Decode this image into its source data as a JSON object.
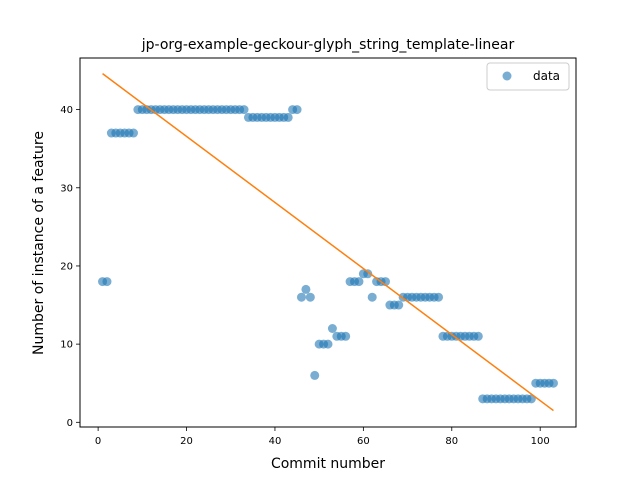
{
  "chart_data": {
    "type": "scatter",
    "title": "jp-org-example-geckour-glyph_string_template-linear",
    "xlabel": "Commit number",
    "ylabel": "Number of instance of a feature",
    "xlim": [
      -4.1,
      108.1
    ],
    "ylim": [
      -0.6,
      46.6
    ],
    "xticks": [
      0,
      20,
      40,
      60,
      80,
      100
    ],
    "yticks": [
      0,
      10,
      20,
      30,
      40
    ],
    "grid": false,
    "legend": {
      "placement": "top-right",
      "entries": [
        "data"
      ]
    },
    "colors": {
      "data": "#1f77b4",
      "fit": "#ff7f0e"
    },
    "series": [
      {
        "name": "data",
        "kind": "scatter",
        "x": [
          1,
          2,
          3,
          4,
          5,
          6,
          7,
          8,
          9,
          10,
          11,
          12,
          13,
          14,
          15,
          16,
          17,
          18,
          19,
          20,
          21,
          22,
          23,
          24,
          25,
          26,
          27,
          28,
          29,
          30,
          31,
          32,
          33,
          34,
          35,
          36,
          37,
          38,
          39,
          40,
          41,
          42,
          43,
          44,
          45,
          46,
          47,
          48,
          49,
          50,
          51,
          52,
          53,
          54,
          55,
          56,
          57,
          58,
          59,
          60,
          61,
          62,
          63,
          64,
          65,
          66,
          67,
          68,
          69,
          70,
          71,
          72,
          73,
          74,
          75,
          76,
          77,
          78,
          79,
          80,
          81,
          82,
          83,
          84,
          85,
          86,
          87,
          88,
          89,
          90,
          91,
          92,
          93,
          94,
          95,
          96,
          97,
          98,
          99,
          100,
          101,
          102,
          103
        ],
        "y": [
          18,
          18,
          37,
          37,
          37,
          37,
          37,
          37,
          40,
          40,
          40,
          40,
          40,
          40,
          40,
          40,
          40,
          40,
          40,
          40,
          40,
          40,
          40,
          40,
          40,
          40,
          40,
          40,
          40,
          40,
          40,
          40,
          40,
          39,
          39,
          39,
          39,
          39,
          39,
          39,
          39,
          39,
          39,
          40,
          40,
          16,
          17,
          16,
          6,
          10,
          10,
          10,
          12,
          11,
          11,
          11,
          18,
          18,
          18,
          19,
          19,
          16,
          18,
          18,
          18,
          15,
          15,
          15,
          16,
          16,
          16,
          16,
          16,
          16,
          16,
          16,
          16,
          11,
          11,
          11,
          11,
          11,
          11,
          11,
          11,
          11,
          3,
          3,
          3,
          3,
          3,
          3,
          3,
          3,
          3,
          3,
          3,
          3,
          5,
          5,
          5,
          5,
          5
        ]
      },
      {
        "kind": "line",
        "x": [
          1,
          103
        ],
        "y": [
          44.6,
          1.5
        ]
      }
    ]
  }
}
